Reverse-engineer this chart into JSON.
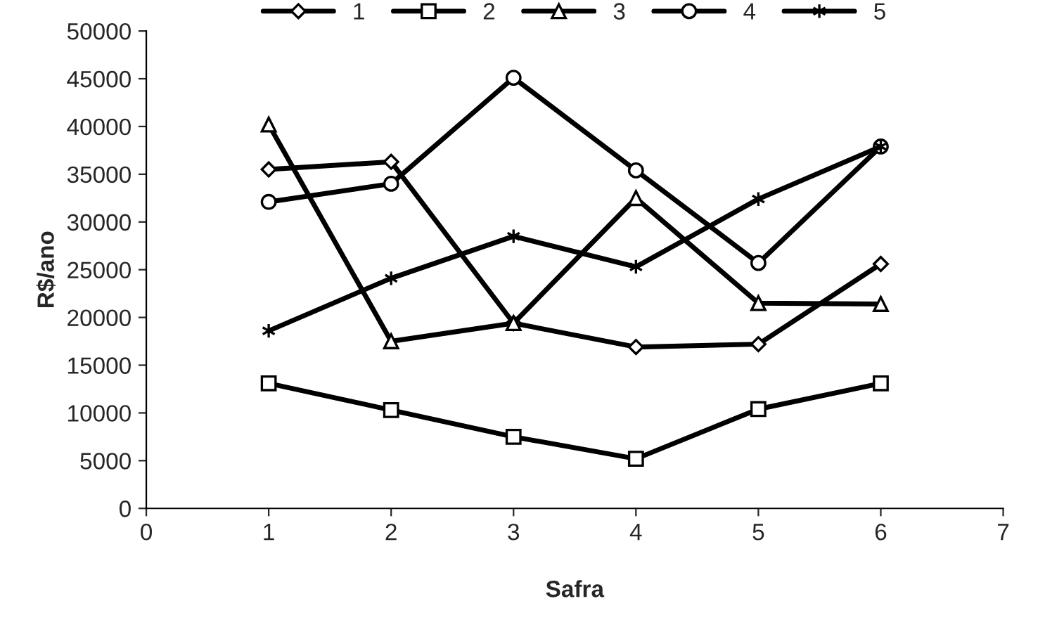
{
  "chart_data": {
    "type": "line",
    "xlabel": "Safra",
    "ylabel": "R$/ano",
    "xlim": [
      0,
      7
    ],
    "xticks": [
      0,
      1,
      2,
      3,
      4,
      5,
      6,
      7
    ],
    "ylim": [
      0,
      50000
    ],
    "yticks": [
      0,
      5000,
      10000,
      15000,
      20000,
      25000,
      30000,
      35000,
      40000,
      45000,
      50000
    ],
    "x": [
      1,
      2,
      3,
      4,
      5,
      6
    ],
    "grid": false,
    "legend": "top",
    "line_style": "solid",
    "series": [
      {
        "name": "1",
        "color": "#000000",
        "marker": "diamond",
        "values": [
          35500,
          36300,
          19400,
          16900,
          17200,
          25600
        ]
      },
      {
        "name": "2",
        "color": "#000000",
        "marker": "square",
        "values": [
          13100,
          10300,
          7500,
          5200,
          10400,
          13100
        ]
      },
      {
        "name": "3",
        "color": "#000000",
        "marker": "triangle",
        "values": [
          40200,
          17500,
          19400,
          32500,
          21500,
          21400
        ]
      },
      {
        "name": "4",
        "color": "#000000",
        "marker": "circle",
        "values": [
          32100,
          34000,
          45100,
          35400,
          25700,
          37900
        ]
      },
      {
        "name": "5",
        "color": "#000000",
        "marker": "cross",
        "values": [
          18600,
          24100,
          28500,
          25300,
          32400,
          37900
        ]
      }
    ]
  }
}
